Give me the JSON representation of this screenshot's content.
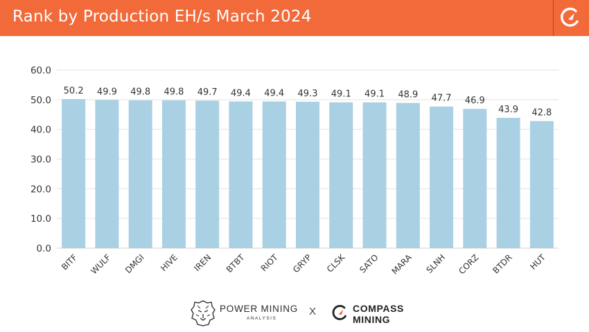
{
  "header": {
    "title": "Rank by Production EH/s March 2024",
    "bg_color": "#f26a3a",
    "logo_icon": "compass-mining-c-icon"
  },
  "chart_data": {
    "type": "bar",
    "title": "Rank by Production EH/s March 2024",
    "categories": [
      "BITF",
      "WULF",
      "DMGI",
      "HIVE",
      "IREN",
      "BTBT",
      "RIOT",
      "GRYP",
      "CLSK",
      "SATO",
      "MARA",
      "SLNH",
      "CORZ",
      "BTDR",
      "HUT"
    ],
    "values": [
      50.2,
      49.9,
      49.8,
      49.8,
      49.7,
      49.4,
      49.4,
      49.3,
      49.1,
      49.1,
      48.9,
      47.7,
      46.9,
      43.9,
      42.8
    ],
    "value_labels": [
      "50.2",
      "49.9",
      "49.8",
      "49.8",
      "49.7",
      "49.4",
      "49.4",
      "49.3",
      "49.1",
      "49.1",
      "48.9",
      "47.7",
      "46.9",
      "43.9",
      "42.8"
    ],
    "yticks": [
      "0.0",
      "10.0",
      "20.0",
      "30.0",
      "40.0",
      "50.0",
      "60.0"
    ],
    "ylim": [
      0,
      60
    ],
    "xlabel": "",
    "ylabel": "",
    "grid": true,
    "bar_color": "#a9d0e3",
    "grid_color": "#e3e3e3"
  },
  "footer": {
    "left_brand": "POWER MINING",
    "left_brand_sub": "ANALYSIS",
    "separator": "X",
    "right_brand_line1": "COMPASS",
    "right_brand_line2": "MINING",
    "left_icon": "lion-head-icon",
    "right_icon": "compass-mining-c-icon"
  }
}
